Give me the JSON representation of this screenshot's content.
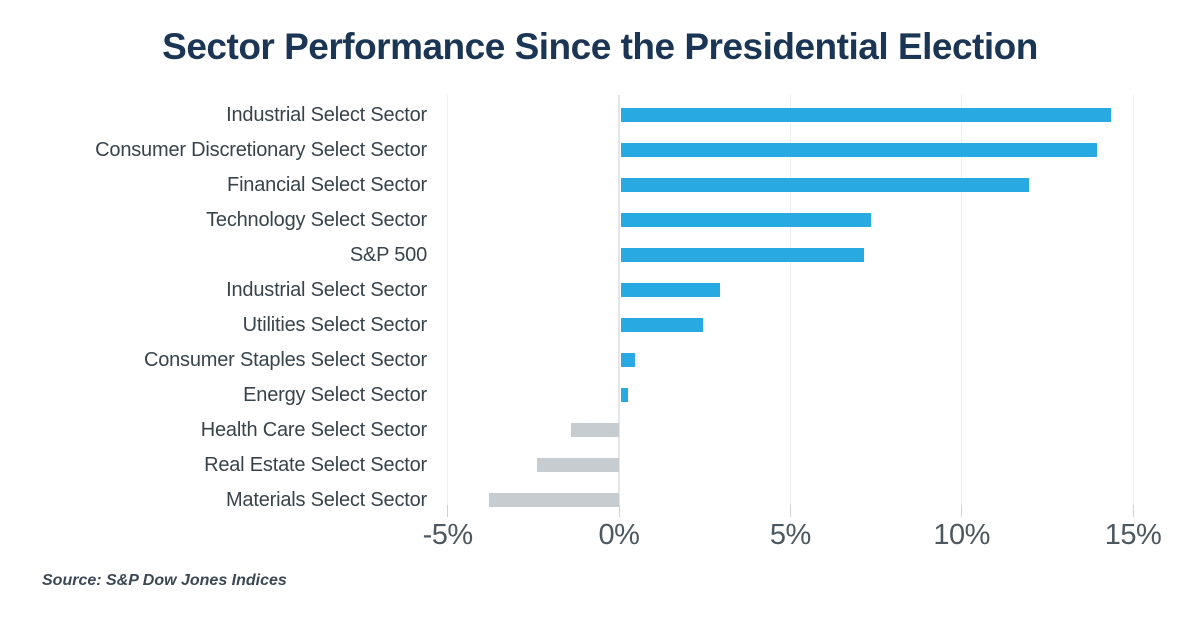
{
  "title": "Sector Performance Since the Presidential Election",
  "source": "Source: S&P Dow Jones Indices",
  "colors": {
    "positive": "#29A9E1",
    "negative": "#C6CCD0",
    "title": "#1B3654",
    "label": "#39434C",
    "axis": "#4E5860",
    "gridline": "#EDEFF0",
    "zero_line": "#E3E6E8",
    "tick": "#CDD2D5",
    "source": "#3C4854",
    "background": "#FFFFFF"
  },
  "chart_data": {
    "type": "bar",
    "orientation": "horizontal",
    "title": "Sector Performance Since the Presidential Election",
    "xlabel": "",
    "ylabel": "",
    "xlim": [
      -5,
      15.8
    ],
    "grid": "vertical",
    "legend": false,
    "units": "percent",
    "categories": [
      "Industrial Select Sector",
      "Consumer Discretionary Select Sector",
      "Financial Select Sector",
      "Technology Select Sector",
      "S&P 500",
      "Industrial Select Sector",
      "Utilities Select Sector",
      "Consumer Staples Select Sector",
      "Energy Select Sector",
      "Health Care Select Sector",
      "Real Estate Select Sector",
      "Materials Select Sector"
    ],
    "values": [
      14.3,
      13.9,
      11.9,
      7.3,
      7.1,
      2.9,
      2.4,
      0.4,
      0.2,
      -1.4,
      -2.4,
      -3.8
    ],
    "x_ticks": [
      {
        "label": "-5%",
        "value": -5
      },
      {
        "label": "0%",
        "value": 0
      },
      {
        "label": "5%",
        "value": 5
      },
      {
        "label": "10%",
        "value": 10
      },
      {
        "label": "15%",
        "value": 15
      }
    ],
    "positive_color": "#29A9E1",
    "negative_color": "#C6CCD0",
    "source": "Source: S&P Dow Jones Indices"
  }
}
